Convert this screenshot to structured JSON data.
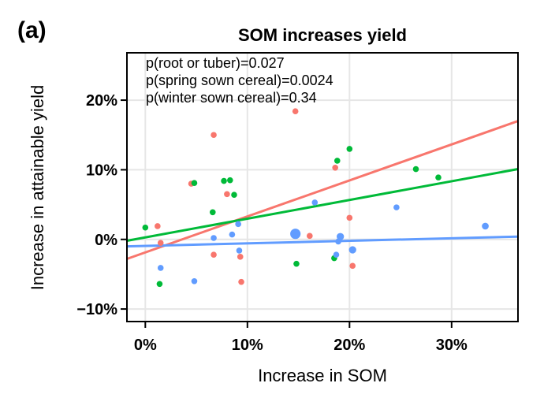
{
  "panel_label": "(a)",
  "chart_data": {
    "type": "scatter",
    "title": "SOM increases yield",
    "xlabel": "Increase in SOM",
    "ylabel": "Increase in attainable yield",
    "xlim": [
      -0.018,
      0.365
    ],
    "ylim": [
      -0.118,
      0.268
    ],
    "x_ticks": [
      0,
      0.1,
      0.2,
      0.3
    ],
    "x_tick_labels": [
      "0%",
      "10%",
      "20%",
      "30%"
    ],
    "y_ticks": [
      -0.1,
      0,
      0.1,
      0.2
    ],
    "y_tick_labels": [
      "−10%",
      "0%",
      "10%",
      "20%"
    ],
    "grid": true,
    "legend": "none",
    "annotations": [
      "p(root or tuber)=0.027",
      "p(spring sown cereal)=0.0024",
      "p(winter sown cereal)=0.34"
    ],
    "series": [
      {
        "color": "#f8766d",
        "points": [
          {
            "x": 0.012,
            "y": 0.019
          },
          {
            "x": 0.015,
            "y": -0.005
          },
          {
            "x": 0.045,
            "y": 0.08
          },
          {
            "x": 0.067,
            "y": 0.15
          },
          {
            "x": 0.067,
            "y": -0.022
          },
          {
            "x": 0.08,
            "y": 0.065
          },
          {
            "x": 0.093,
            "y": -0.025
          },
          {
            "x": 0.094,
            "y": -0.061
          },
          {
            "x": 0.147,
            "y": 0.184
          },
          {
            "x": 0.161,
            "y": 0.005
          },
          {
            "x": 0.186,
            "y": 0.103
          },
          {
            "x": 0.2,
            "y": 0.031
          },
          {
            "x": 0.203,
            "y": -0.038
          }
        ],
        "fit": {
          "x": [
            -0.018,
            0.365
          ],
          "y": [
            -0.028,
            0.17
          ]
        }
      },
      {
        "color": "#00ba38",
        "points": [
          {
            "x": 0.0,
            "y": 0.017
          },
          {
            "x": 0.014,
            "y": -0.064
          },
          {
            "x": 0.048,
            "y": 0.081
          },
          {
            "x": 0.066,
            "y": 0.039
          },
          {
            "x": 0.077,
            "y": 0.084
          },
          {
            "x": 0.083,
            "y": 0.085
          },
          {
            "x": 0.087,
            "y": 0.064
          },
          {
            "x": 0.148,
            "y": -0.035
          },
          {
            "x": 0.185,
            "y": -0.027
          },
          {
            "x": 0.188,
            "y": 0.113
          },
          {
            "x": 0.2,
            "y": 0.13
          },
          {
            "x": 0.265,
            "y": 0.101
          },
          {
            "x": 0.287,
            "y": 0.089
          }
        ],
        "fit": {
          "x": [
            -0.018,
            0.365
          ],
          "y": [
            -0.002,
            0.101
          ]
        }
      },
      {
        "color": "#619cff",
        "points": [
          {
            "x": 0.015,
            "y": -0.041,
            "size": 1
          },
          {
            "x": 0.048,
            "y": -0.06,
            "size": 1
          },
          {
            "x": 0.067,
            "y": 0.002,
            "size": 1
          },
          {
            "x": 0.085,
            "y": 0.007,
            "size": 1
          },
          {
            "x": 0.091,
            "y": 0.022,
            "size": 1
          },
          {
            "x": 0.092,
            "y": -0.016,
            "size": 1
          },
          {
            "x": 0.147,
            "y": 0.008,
            "size": 3
          },
          {
            "x": 0.166,
            "y": 0.053,
            "size": 1
          },
          {
            "x": 0.187,
            "y": -0.022,
            "size": 1
          },
          {
            "x": 0.189,
            "y": -0.003,
            "size": 1
          },
          {
            "x": 0.191,
            "y": 0.004,
            "size": 1.5
          },
          {
            "x": 0.203,
            "y": -0.015,
            "size": 1.5
          },
          {
            "x": 0.246,
            "y": 0.046,
            "size": 1
          },
          {
            "x": 0.333,
            "y": 0.019,
            "size": 1.3
          }
        ],
        "fit": {
          "x": [
            -0.018,
            0.365
          ],
          "y": [
            -0.01,
            0.004
          ]
        }
      }
    ]
  }
}
